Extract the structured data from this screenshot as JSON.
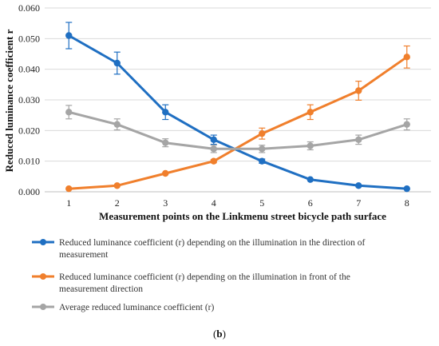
{
  "chart_data": {
    "type": "line",
    "title": "",
    "xlabel": "Measurement points on the Linkmenu street bicycle path surface",
    "ylabel": "Reduced luminance coefficient r",
    "x": [
      1,
      2,
      3,
      4,
      5,
      6,
      7,
      8
    ],
    "ylim": [
      0,
      0.06
    ],
    "yticks": [
      "0.000",
      "0.010",
      "0.020",
      "0.030",
      "0.040",
      "0.050",
      "0.060"
    ],
    "grid": true,
    "legend_position": "bottom",
    "series": [
      {
        "name": "Reduced luminance coefficient (r) depending on the illumination in the direction of measurement",
        "color": "#1f6fc2",
        "values": [
          0.051,
          0.042,
          0.026,
          0.017,
          0.01,
          0.004,
          0.002,
          0.001
        ],
        "error": [
          0.0043,
          0.0036,
          0.0024,
          0.0015,
          0.0007,
          0.0,
          0.0,
          0.0
        ]
      },
      {
        "name": "Reduced luminance coefficient (r) depending on the illumination in front of the measurement direction",
        "color": "#f07f2c",
        "values": [
          0.001,
          0.002,
          0.006,
          0.01,
          0.019,
          0.026,
          0.033,
          0.044
        ],
        "error": [
          0.0,
          0.0,
          0.0,
          0.0005,
          0.0018,
          0.0024,
          0.0031,
          0.0036
        ]
      },
      {
        "name": "Average reduced luminance coefficient (r)",
        "color": "#a5a5a5",
        "values": [
          0.026,
          0.022,
          0.016,
          0.014,
          0.014,
          0.015,
          0.017,
          0.022
        ],
        "error": [
          0.0022,
          0.0018,
          0.0013,
          0.0012,
          0.0012,
          0.0013,
          0.0015,
          0.0018
        ]
      }
    ]
  },
  "caption": {
    "prefix": "(",
    "letter": "b",
    "suffix": ")"
  }
}
